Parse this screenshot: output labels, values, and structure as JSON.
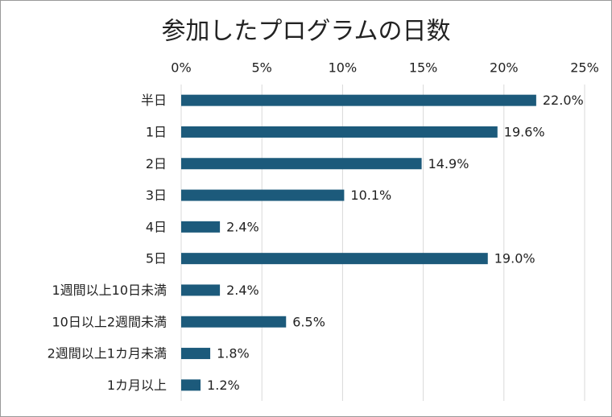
{
  "chart_data": {
    "type": "bar",
    "orientation": "horizontal",
    "title": "参加したプログラムの日数",
    "categories": [
      "半日",
      "1日",
      "2日",
      "3日",
      "4日",
      "5日",
      "1週間以上10日未満",
      "10日以上2週間未満",
      "2週間以上1カ月未満",
      "1カ月以上"
    ],
    "values": [
      22.0,
      19.6,
      14.9,
      10.1,
      2.4,
      19.0,
      2.4,
      6.5,
      1.8,
      1.2
    ],
    "value_labels": [
      "22.0%",
      "19.6%",
      "14.9%",
      "10.1%",
      "2.4%",
      "19.0%",
      "2.4%",
      "6.5%",
      "1.8%",
      "1.2%"
    ],
    "color": "#1c5a7b",
    "xlim": [
      0,
      25
    ],
    "xticks": [
      {
        "value": 0,
        "label": "0%"
      },
      {
        "value": 5,
        "label": "5%"
      },
      {
        "value": 10,
        "label": "10%"
      },
      {
        "value": 15,
        "label": "15%"
      },
      {
        "value": 20,
        "label": "20%"
      },
      {
        "value": 25,
        "label": "25%"
      }
    ],
    "grid": true
  }
}
